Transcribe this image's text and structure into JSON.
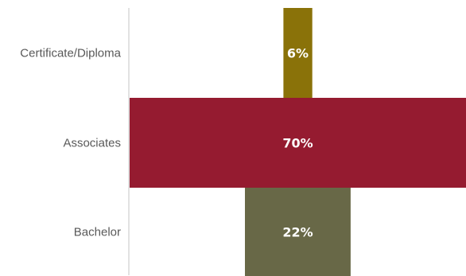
{
  "chart_data": {
    "type": "bar",
    "orientation": "horizontal",
    "layout": "funnel",
    "categories": [
      "Certificate/Diploma",
      "Associates",
      "Bachelor"
    ],
    "values": [
      6,
      70,
      22
    ],
    "value_labels": [
      "6%",
      "70%",
      "22%"
    ],
    "value_unit": "%",
    "colors": [
      "#8a7209",
      "#951b30",
      "#686847"
    ],
    "axis_line_color": "#d9d9d9",
    "grid": false,
    "legend": "none"
  }
}
